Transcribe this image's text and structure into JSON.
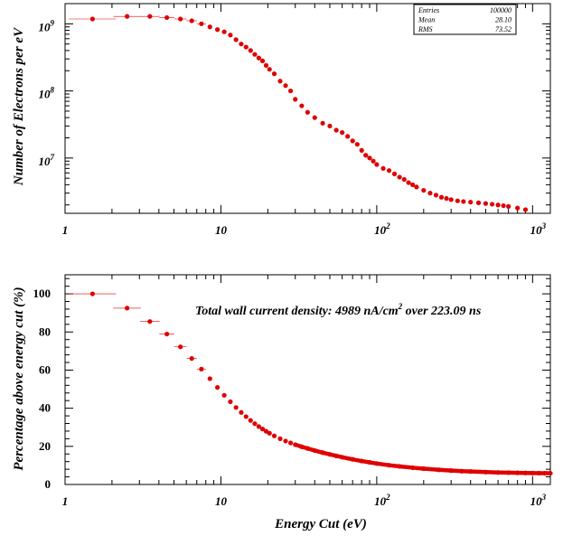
{
  "chart_data": [
    {
      "type": "scatter",
      "log_x": true,
      "log_y": true,
      "xlim": [
        1,
        1300
      ],
      "ylim": [
        1500000,
        2000000000
      ],
      "ylabel": "Number of Electrons per eV",
      "x_ticks": [
        {
          "v": 1,
          "base": "1",
          "exp": ""
        },
        {
          "v": 10,
          "base": "10",
          "exp": ""
        },
        {
          "v": 100,
          "base": "10",
          "exp": "2"
        },
        {
          "v": 1000,
          "base": "10",
          "exp": "3"
        }
      ],
      "y_ticks": [
        {
          "v": 10000000,
          "base": "10",
          "exp": "7"
        },
        {
          "v": 100000000,
          "base": "10",
          "exp": "8"
        },
        {
          "v": 1000000000,
          "base": "10",
          "exp": "9"
        }
      ],
      "stats_box": [
        {
          "label": "Entries",
          "value": "100000"
        },
        {
          "label": "Mean",
          "value": "28.10"
        },
        {
          "label": "RMS",
          "value": "73.52"
        }
      ],
      "marker_color": "#e00000",
      "series": [
        {
          "x": [
            1.5,
            2.5,
            3.5,
            4.5,
            5.5,
            6.5,
            7.5,
            8.5,
            9.5,
            10.5,
            11.5,
            12.5,
            13.5,
            14.5,
            15.5,
            16.5,
            17.5,
            18.5,
            19.5,
            20.5,
            22,
            24,
            26,
            28,
            30,
            33,
            36,
            40,
            45,
            50,
            55,
            60,
            65,
            70,
            75,
            80,
            85,
            90,
            95,
            100,
            110,
            120,
            130,
            140,
            150,
            160,
            170,
            180,
            200,
            220,
            240,
            260,
            280,
            300,
            330,
            360,
            400,
            450,
            500,
            550,
            600,
            650,
            700,
            800,
            900
          ],
          "y": [
            1180000000,
            1290000000,
            1290000000,
            1240000000,
            1180000000,
            1110000000,
            1000000000,
            900000000,
            820000000,
            760000000,
            680000000,
            580000000,
            500000000,
            450000000,
            400000000,
            350000000,
            310000000,
            280000000,
            240000000,
            210000000,
            180000000,
            140000000,
            120000000,
            100000000,
            75000000,
            60000000,
            48000000,
            40000000,
            33000000,
            30000000,
            26000000,
            24000000,
            21000000,
            18000000,
            16000000,
            13000000,
            11000000,
            10000000,
            9000000,
            8000000,
            7000000,
            6500000,
            5800000,
            5200000,
            4800000,
            4300000,
            4000000,
            3700000,
            3300000,
            3000000,
            2800000,
            2600000,
            2500000,
            2400000,
            2300000,
            2250000,
            2200000,
            2150000,
            2100000,
            2050000,
            2000000,
            1950000,
            1900000,
            1800000,
            1700000
          ]
        }
      ]
    },
    {
      "type": "line",
      "log_x": true,
      "log_y": false,
      "xlim": [
        1,
        1300
      ],
      "ylim": [
        0,
        110
      ],
      "xlabel": "Energy Cut (eV)",
      "ylabel": "Percentage above energy cut (%)",
      "x_ticks": [
        {
          "v": 1,
          "base": "1",
          "exp": ""
        },
        {
          "v": 10,
          "base": "10",
          "exp": ""
        },
        {
          "v": 100,
          "base": "10",
          "exp": "2"
        },
        {
          "v": 1000,
          "base": "10",
          "exp": "3"
        }
      ],
      "y_ticks": [
        0,
        20,
        40,
        60,
        80,
        100
      ],
      "annotation": {
        "prefix": "Total wall current density: 4989 nA/cm",
        "sup": "2",
        "suffix": " over 223.09 ns"
      },
      "marker_color": "#e00000",
      "series": [
        {
          "x": [
            1.5,
            2.5,
            3.5,
            4.5,
            5.5,
            6.5,
            7.5,
            8.5,
            9.5,
            10.5,
            11.5,
            12.5,
            13.5,
            14.5,
            15.5,
            16.5,
            17.5,
            18.5,
            19.5,
            20.5,
            22,
            24,
            26,
            28,
            30,
            33,
            36,
            40,
            45,
            50,
            55,
            60,
            70,
            80,
            90,
            100,
            120,
            140,
            170,
            200,
            250,
            300,
            350,
            400,
            500,
            600,
            700,
            800,
            900,
            1000,
            1100,
            1200,
            1300
          ],
          "y": [
            100,
            92.5,
            85.5,
            78.9,
            72.2,
            66.1,
            60.5,
            55.5,
            50.9,
            46.8,
            43.4,
            40.4,
            37.8,
            35.6,
            33.6,
            31.9,
            30.4,
            29.1,
            27.9,
            26.9,
            25.5,
            24.0,
            22.8,
            21.8,
            20.9,
            19.8,
            18.9,
            17.8,
            16.7,
            15.8,
            15.0,
            14.3,
            13.2,
            12.3,
            11.6,
            11.0,
            10.1,
            9.5,
            8.8,
            8.3,
            7.7,
            7.3,
            7.0,
            6.8,
            6.5,
            6.3,
            6.2,
            6.1,
            6.05,
            6.0,
            5.95,
            5.9,
            5.9
          ]
        }
      ]
    }
  ]
}
